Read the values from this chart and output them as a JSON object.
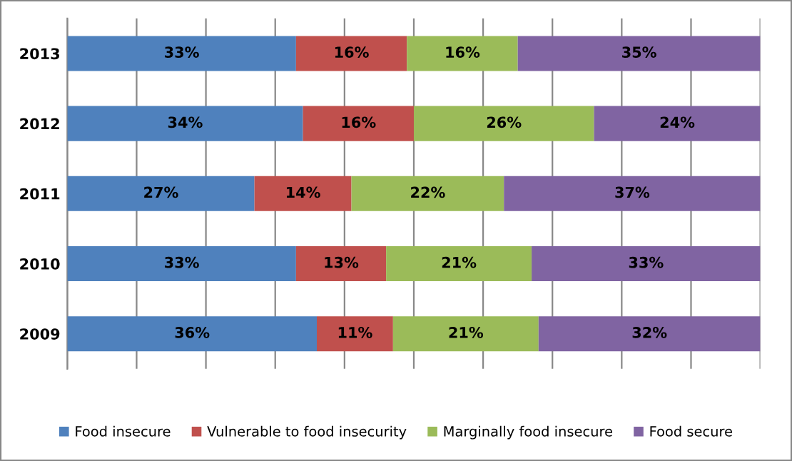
{
  "chart_data": {
    "type": "bar",
    "orientation": "horizontal",
    "stacked": true,
    "categories": [
      "2013",
      "2012",
      "2011",
      "2010",
      "2009"
    ],
    "series": [
      {
        "name": "Food insecure",
        "color": "#4f81bd",
        "values": [
          33,
          34,
          27,
          33,
          36
        ],
        "value_labels": [
          "33%",
          "34%",
          "27%",
          "33%",
          "36%"
        ]
      },
      {
        "name": "Vulnerable to food insecurity",
        "color": "#c0504d",
        "values": [
          16,
          16,
          14,
          13,
          11
        ],
        "value_labels": [
          "16%",
          "16%",
          "14%",
          "13%",
          "11%"
        ]
      },
      {
        "name": "Marginally food insecure",
        "color": "#9bbb59",
        "values": [
          16,
          26,
          22,
          21,
          21
        ],
        "value_labels": [
          "16%",
          "26%",
          "22%",
          "21%",
          "21%"
        ]
      },
      {
        "name": "Food secure",
        "color": "#8064a2",
        "values": [
          35,
          24,
          37,
          33,
          32
        ],
        "value_labels": [
          "35%",
          "24%",
          "37%",
          "33%",
          "32%"
        ]
      }
    ],
    "xlim": [
      0,
      100
    ],
    "xticks": [
      0,
      10,
      20,
      30,
      40,
      50,
      60,
      70,
      80,
      90,
      100
    ],
    "tick_labels": "y",
    "grid": "x",
    "legend": "bottom"
  }
}
